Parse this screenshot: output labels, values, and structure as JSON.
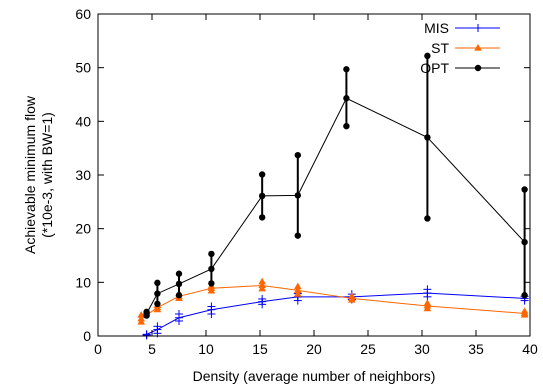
{
  "chart_data": {
    "type": "line",
    "xlabel": "Density (average number of neighbors)",
    "ylabel": "Achievable minimum flow",
    "ylabel2": "(*10e-3, with BW=1)",
    "xlim": [
      0,
      40
    ],
    "ylim": [
      0,
      60
    ],
    "xticks": [
      0,
      5,
      10,
      15,
      20,
      25,
      30,
      35,
      40
    ],
    "yticks": [
      0,
      10,
      20,
      30,
      40,
      50,
      60
    ],
    "grid": false,
    "legend_position": "top-right",
    "series": [
      {
        "name": "MIS",
        "color": "#0000ff",
        "marker": "plus",
        "x": [
          4.5,
          5.5,
          7.5,
          10.5,
          15.2,
          18.5,
          23.5,
          30.5,
          39.5
        ],
        "y": [
          0.3,
          1.2,
          3.4,
          4.9,
          6.4,
          7.3,
          7.3,
          8.0,
          7.0
        ],
        "errors": [
          [
            0.3,
            0.1,
            0.3
          ],
          [
            1.2,
            0.5,
            1.8
          ],
          [
            3.4,
            2.8,
            4.1
          ],
          [
            4.9,
            4.1,
            5.5
          ],
          [
            6.4,
            5.9,
            6.9
          ],
          [
            7.3,
            6.6,
            7.9
          ],
          [
            7.3,
            6.8,
            7.8
          ],
          [
            8.0,
            7.3,
            8.7
          ],
          [
            7.0,
            6.6,
            7.4
          ]
        ]
      },
      {
        "name": "ST",
        "color": "#ff6600",
        "marker": "triangle",
        "x": [
          4.0,
          5.5,
          7.5,
          10.5,
          15.2,
          18.5,
          23.5,
          30.5,
          39.5
        ],
        "y": [
          3.2,
          5.3,
          7.4,
          8.9,
          9.4,
          8.5,
          7.0,
          5.6,
          4.2
        ],
        "errors": [
          [
            3.2,
            2.6,
            3.9
          ],
          [
            5.3,
            4.9,
            5.7
          ],
          [
            7.4,
            7.0,
            7.9
          ],
          [
            8.9,
            8.4,
            9.3
          ],
          [
            9.4,
            8.8,
            10.1
          ],
          [
            8.5,
            7.8,
            9.2
          ],
          [
            7.0,
            6.7,
            7.4
          ],
          [
            5.6,
            5.1,
            6.1
          ],
          [
            4.2,
            3.9,
            4.6
          ]
        ]
      },
      {
        "name": "OPT",
        "color": "#000000",
        "marker": "dot",
        "x": [
          4.5,
          5.5,
          7.5,
          10.5,
          15.2,
          18.5,
          23.0,
          30.5,
          39.5
        ],
        "y": [
          4.2,
          7.9,
          9.7,
          12.5,
          26.1,
          26.2,
          44.3,
          37.0,
          17.5
        ],
        "errors": [
          [
            4.2,
            3.8,
            4.5
          ],
          [
            7.9,
            6.0,
            9.9
          ],
          [
            9.7,
            7.6,
            11.6
          ],
          [
            12.5,
            9.8,
            15.3
          ],
          [
            26.1,
            22.1,
            30.1
          ],
          [
            26.2,
            18.7,
            33.7
          ],
          [
            44.3,
            39.1,
            49.7
          ],
          [
            37.0,
            21.9,
            52.2
          ],
          [
            17.5,
            7.6,
            27.3
          ]
        ]
      }
    ]
  }
}
